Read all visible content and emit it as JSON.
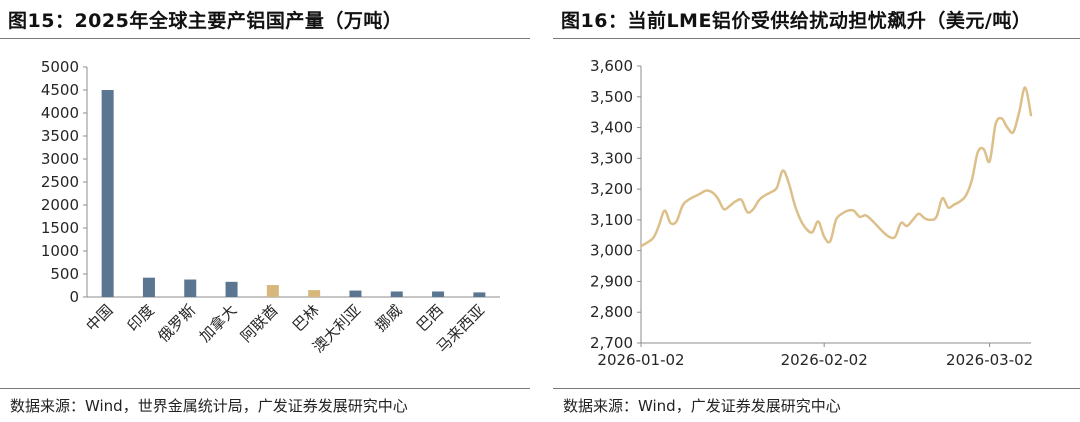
{
  "left": {
    "title": "图15：2025年全球主要产铝国产量（万吨）",
    "source": "数据来源：Wind，世界金属统计局，广发证券发展研究中心",
    "chart_data": {
      "type": "bar",
      "title": "图15：2025年全球主要产铝国产量（万吨）",
      "categories": [
        "中国",
        "印度",
        "俄罗斯",
        "加拿大",
        "阿联酋",
        "巴林",
        "澳大利亚",
        "挪威",
        "巴西",
        "马来西亚"
      ],
      "values": [
        4500,
        420,
        380,
        330,
        260,
        150,
        140,
        120,
        120,
        100
      ],
      "highlight": [
        false,
        false,
        false,
        false,
        true,
        true,
        false,
        false,
        false,
        false
      ],
      "ylim": [
        0,
        5000
      ],
      "yticks": [
        0,
        500,
        1000,
        1500,
        2000,
        2500,
        3000,
        3500,
        4000,
        4500,
        5000
      ],
      "ytick_labels": [
        "0",
        "500",
        "1000",
        "1500",
        "2000",
        "2500",
        "3000",
        "3500",
        "4000",
        "4500",
        "5000"
      ],
      "grid": false,
      "colors": {
        "default": "#5a7691",
        "highlight": "#d8b77c"
      }
    }
  },
  "right": {
    "title": "图16：当前LME铝价受供给扰动担忧飙升（美元/吨）",
    "source": "数据来源：Wind，广发证券发展研究中心",
    "chart_data": {
      "type": "line",
      "title": "图16：当前LME铝价受供给扰动担忧飙升（美元/吨）",
      "x_start": "2026-01-02",
      "x_end": "2026-03-09",
      "xticks": [
        "2026-01-02",
        "2026-02-02",
        "2026-03-02"
      ],
      "ylim": [
        2700,
        3600
      ],
      "yticks": [
        2700,
        2800,
        2900,
        3000,
        3100,
        3200,
        3300,
        3400,
        3500,
        3600
      ],
      "ytick_labels": [
        "2,700",
        "2,800",
        "2,900",
        "3,000",
        "3,100",
        "3,200",
        "3,300",
        "3,400",
        "3,500",
        "3,600"
      ],
      "grid": false,
      "series": [
        {
          "color": "#ddbf8a",
          "x": [
            "2026-01-02",
            "2026-01-04",
            "2026-01-05",
            "2026-01-06",
            "2026-01-07",
            "2026-01-08",
            "2026-01-09",
            "2026-01-10",
            "2026-01-12",
            "2026-01-13",
            "2026-01-14",
            "2026-01-15",
            "2026-01-16",
            "2026-01-17",
            "2026-01-18",
            "2026-01-19",
            "2026-01-20",
            "2026-01-21",
            "2026-01-22",
            "2026-01-23",
            "2026-01-24",
            "2026-01-25",
            "2026-01-26",
            "2026-01-27",
            "2026-01-28",
            "2026-01-29",
            "2026-01-30",
            "2026-01-31",
            "2026-02-01",
            "2026-02-02",
            "2026-02-03",
            "2026-02-04",
            "2026-02-05",
            "2026-02-06",
            "2026-02-07",
            "2026-02-08",
            "2026-02-09",
            "2026-02-10",
            "2026-02-11",
            "2026-02-12",
            "2026-02-13",
            "2026-02-14",
            "2026-02-15",
            "2026-02-16",
            "2026-02-17",
            "2026-02-18",
            "2026-02-19",
            "2026-02-20",
            "2026-02-21",
            "2026-02-22",
            "2026-02-23",
            "2026-02-24",
            "2026-02-25",
            "2026-02-26",
            "2026-02-27",
            "2026-02-28",
            "2026-03-01",
            "2026-03-02",
            "2026-03-03",
            "2026-03-04",
            "2026-03-05",
            "2026-03-06",
            "2026-03-07",
            "2026-03-08",
            "2026-03-09"
          ],
          "values": [
            3015,
            3040,
            3080,
            3130,
            3090,
            3095,
            3145,
            3165,
            3185,
            3195,
            3190,
            3170,
            3135,
            3145,
            3160,
            3165,
            3125,
            3135,
            3165,
            3180,
            3190,
            3205,
            3260,
            3220,
            3150,
            3100,
            3070,
            3060,
            3095,
            3045,
            3030,
            3100,
            3120,
            3130,
            3130,
            3110,
            3115,
            3100,
            3080,
            3060,
            3045,
            3045,
            3090,
            3080,
            3100,
            3120,
            3105,
            3100,
            3110,
            3170,
            3140,
            3150,
            3160,
            3180,
            3230,
            3320,
            3330,
            3290,
            3410,
            3430,
            3400,
            3385,
            3450,
            3530,
            3440
          ]
        }
      ]
    }
  }
}
